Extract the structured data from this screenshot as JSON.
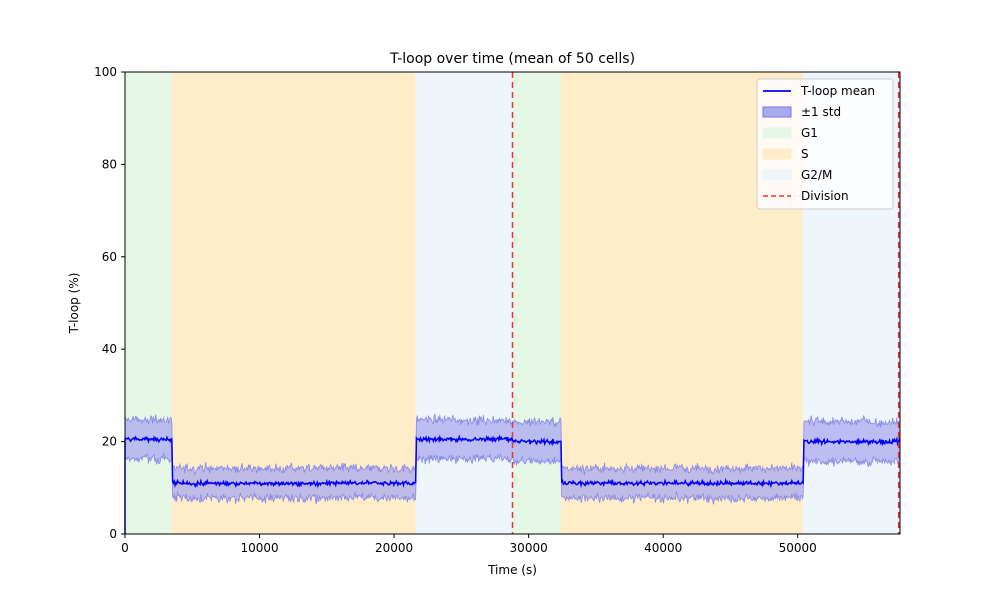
{
  "chart_data": {
    "type": "line",
    "title": "T-loop over time (mean of 50 cells)",
    "xlabel": "Time (s)",
    "ylabel": "T-loop (%)",
    "xlim": [
      0,
      57600
    ],
    "ylim": [
      0,
      100
    ],
    "xticks": [
      0,
      10000,
      20000,
      30000,
      40000,
      50000
    ],
    "yticks": [
      0,
      20,
      40,
      60,
      80,
      100
    ],
    "grid": false,
    "legend_position": "top-right",
    "phases": [
      {
        "name": "G1",
        "start": 0,
        "end": 3500,
        "color": "#e6f7e6"
      },
      {
        "name": "S",
        "start": 3500,
        "end": 21600,
        "color": "#ffecc8"
      },
      {
        "name": "G2/M",
        "start": 21600,
        "end": 28800,
        "color": "#eef6fb"
      },
      {
        "name": "G1",
        "start": 28800,
        "end": 32400,
        "color": "#e6f7e6"
      },
      {
        "name": "S",
        "start": 32400,
        "end": 50400,
        "color": "#ffecc8"
      },
      {
        "name": "G2/M",
        "start": 50400,
        "end": 57600,
        "color": "#eef6fb"
      }
    ],
    "divisions": [
      28800,
      57500
    ],
    "mean_levels": [
      {
        "start": 0,
        "end": 3500,
        "mean": 20.5,
        "std": 4.2
      },
      {
        "start": 3500,
        "end": 21600,
        "mean": 11.0,
        "std": 3.2
      },
      {
        "start": 21600,
        "end": 28800,
        "mean": 20.5,
        "std": 4.2
      },
      {
        "start": 28800,
        "end": 32400,
        "mean": 20.0,
        "std": 4.2
      },
      {
        "start": 32400,
        "end": 50400,
        "mean": 11.0,
        "std": 3.2
      },
      {
        "start": 50400,
        "end": 57600,
        "mean": 20.0,
        "std": 4.2
      }
    ],
    "series": [
      {
        "name": "T-loop mean",
        "color": "#0000ff"
      },
      {
        "name": "±1 std",
        "color": "#6666ee"
      }
    ],
    "legend": [
      {
        "label": "T-loop mean",
        "kind": "line",
        "color": "#0000ff"
      },
      {
        "label": "±1 std",
        "kind": "patch",
        "color": "#aaaaf0",
        "edge": "#7777e0"
      },
      {
        "label": "G1",
        "kind": "patch",
        "color": "#e6f7e6",
        "edge": "#e6f7e6"
      },
      {
        "label": "S",
        "kind": "patch",
        "color": "#ffecc8",
        "edge": "#ffecc8"
      },
      {
        "label": "G2/M",
        "kind": "patch",
        "color": "#eef6fb",
        "edge": "#eef6fb"
      },
      {
        "label": "Division",
        "kind": "dashed",
        "color": "#ee3333"
      }
    ]
  }
}
